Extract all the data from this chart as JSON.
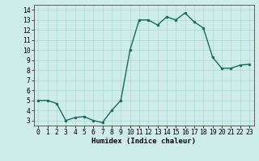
{
  "x": [
    0,
    1,
    2,
    3,
    4,
    5,
    6,
    7,
    8,
    9,
    10,
    11,
    12,
    13,
    14,
    15,
    16,
    17,
    18,
    19,
    20,
    21,
    22,
    23
  ],
  "y": [
    5,
    5,
    4.7,
    3,
    3.3,
    3.4,
    3,
    2.8,
    4,
    5,
    10,
    13,
    13,
    12.5,
    13.3,
    13,
    13.7,
    12.8,
    12.2,
    9.3,
    8.2,
    8.2,
    8.5,
    8.6
  ],
  "line_color": "#1a6b5a",
  "marker": "o",
  "marker_size": 2,
  "line_width": 1.0,
  "bg_color": "#cdecea",
  "grid_color": "#add8d5",
  "xlabel": "Humidex (Indice chaleur)",
  "xlim": [
    -0.5,
    23.5
  ],
  "ylim": [
    2.5,
    14.5
  ],
  "yticks": [
    3,
    4,
    5,
    6,
    7,
    8,
    9,
    10,
    11,
    12,
    13,
    14
  ],
  "xticks": [
    0,
    1,
    2,
    3,
    4,
    5,
    6,
    7,
    8,
    9,
    10,
    11,
    12,
    13,
    14,
    15,
    16,
    17,
    18,
    19,
    20,
    21,
    22,
    23
  ],
  "xlabel_fontsize": 6.5,
  "tick_fontsize": 5.8
}
